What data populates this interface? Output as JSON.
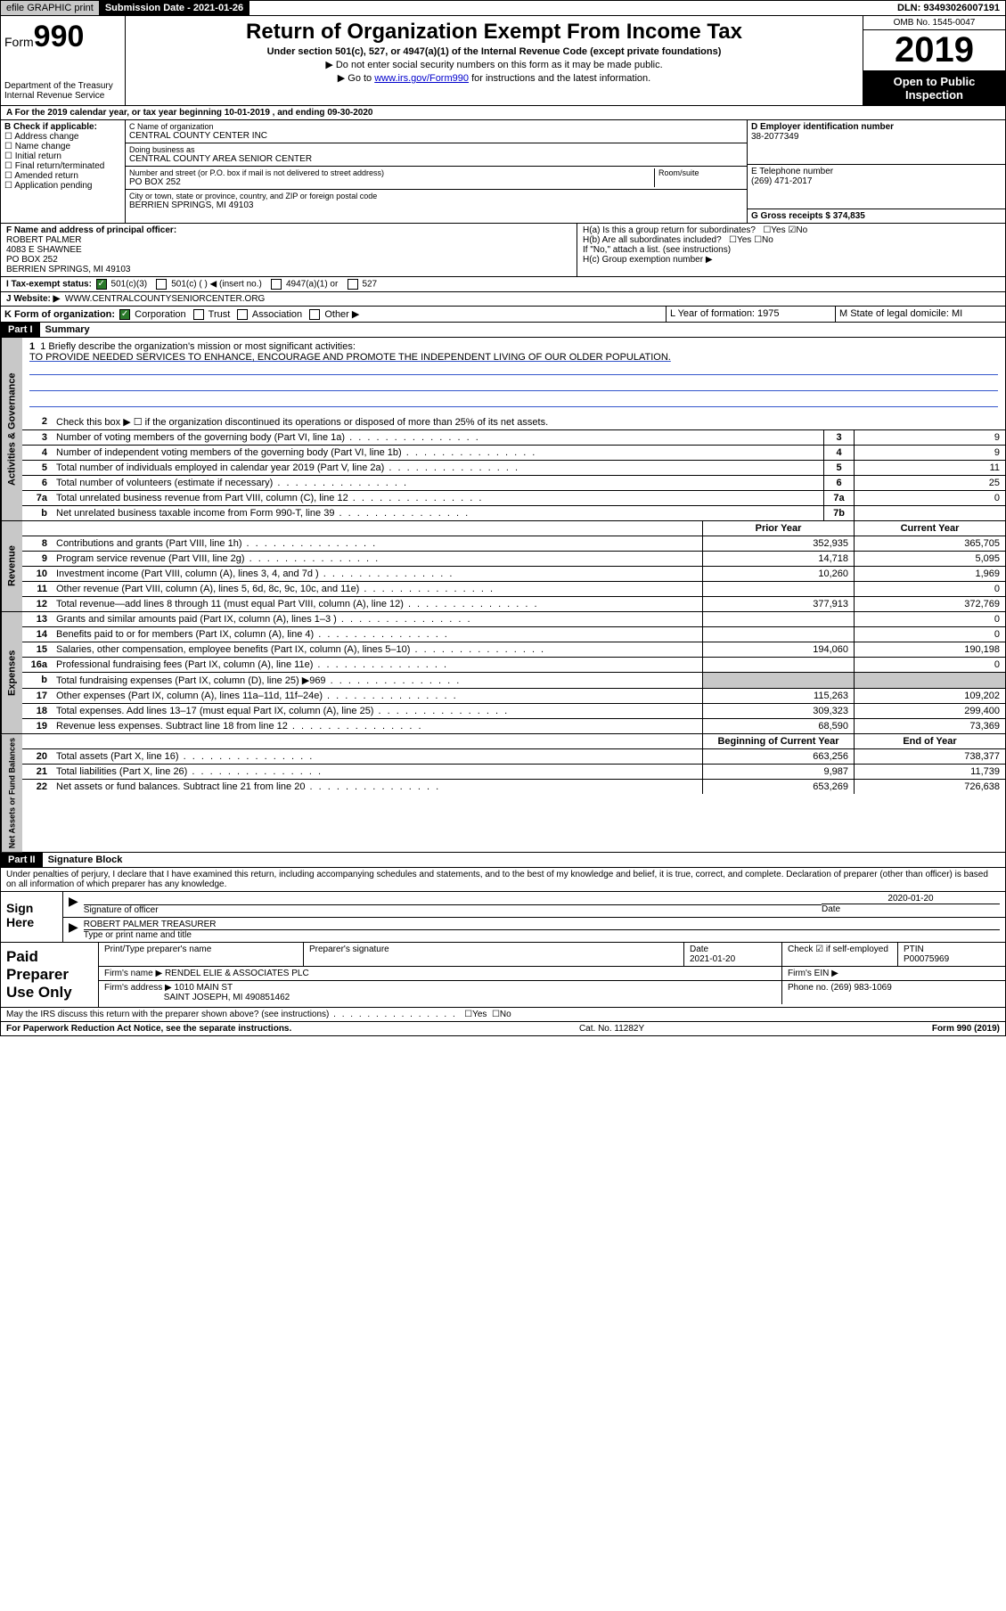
{
  "topbar": {
    "efile": "efile GRAPHIC print",
    "subdate_label": "Submission Date - 2021-01-26",
    "dln": "DLN: 93493026007191"
  },
  "header": {
    "form": "Form",
    "formnum": "990",
    "dept": "Department of the Treasury\nInternal Revenue Service",
    "title": "Return of Organization Exempt From Income Tax",
    "subtitle": "Under section 501(c), 527, or 4947(a)(1) of the Internal Revenue Code (except private foundations)",
    "dne": "▶ Do not enter social security numbers on this form as it may be made public.",
    "goto_pre": "▶ Go to ",
    "goto_link": "www.irs.gov/Form990",
    "goto_post": " for instructions and the latest information.",
    "omb": "OMB No. 1545-0047",
    "year": "2019",
    "open": "Open to Public Inspection"
  },
  "A": {
    "text": "A For the 2019 calendar year, or tax year beginning 10-01-2019   , and ending 09-30-2020"
  },
  "B": {
    "label": "B Check if applicable:",
    "opts": [
      "Address change",
      "Name change",
      "Initial return",
      "Final return/terminated",
      "Amended return",
      "Application pending"
    ]
  },
  "C": {
    "name_label": "C Name of organization",
    "name": "CENTRAL COUNTY CENTER INC",
    "dba_label": "Doing business as",
    "dba": "CENTRAL COUNTY AREA SENIOR CENTER",
    "addr_label": "Number and street (or P.O. box if mail is not delivered to street address)",
    "room_label": "Room/suite",
    "addr": "PO BOX 252",
    "city_label": "City or town, state or province, country, and ZIP or foreign postal code",
    "city": "BERRIEN SPRINGS, MI  49103"
  },
  "D": {
    "label": "D Employer identification number",
    "val": "38-2077349"
  },
  "E": {
    "label": "E Telephone number",
    "val": "(269) 471-2017"
  },
  "G": {
    "label": "G Gross receipts $ 374,835"
  },
  "F": {
    "label": "F Name and address of principal officer:",
    "name": "ROBERT PALMER",
    "l1": "4083 E SHAWNEE",
    "l2": "PO BOX 252",
    "l3": "BERRIEN SPRINGS, MI  49103"
  },
  "H": {
    "a": "H(a)  Is this a group return for subordinates?",
    "b": "H(b)  Are all subordinates included?",
    "b2": "If \"No,\" attach a list. (see instructions)",
    "c": "H(c)  Group exemption number ▶",
    "yes": "Yes",
    "no": "No"
  },
  "I": {
    "label": "I  Tax-exempt status:",
    "o1": "501(c)(3)",
    "o2": "501(c) (  ) ◀ (insert no.)",
    "o3": "4947(a)(1) or",
    "o4": "527"
  },
  "J": {
    "label": "J  Website: ▶",
    "val": "WWW.CENTRALCOUNTYSENIORCENTER.ORG"
  },
  "K": {
    "label": "K Form of organization:",
    "o1": "Corporation",
    "o2": "Trust",
    "o3": "Association",
    "o4": "Other ▶"
  },
  "L": {
    "label": "L Year of formation: 1975"
  },
  "M": {
    "label": "M State of legal domicile: MI"
  },
  "part1": {
    "bar": "Part I",
    "title": "Summary"
  },
  "summary": {
    "s1_label": "1  Briefly describe the organization's mission or most significant activities:",
    "mission": "TO PROVIDE NEEDED SERVICES TO ENHANCE, ENCOURAGE AND PROMOTE THE INDEPENDENT LIVING OF OUR OLDER POPULATION.",
    "s2": "Check this box ▶ ☐ if the organization discontinued its operations or disposed of more than 25% of its net assets.",
    "lines_gov": [
      {
        "n": "3",
        "t": "Number of voting members of the governing body (Part VI, line 1a)",
        "box": "3",
        "v": "9"
      },
      {
        "n": "4",
        "t": "Number of independent voting members of the governing body (Part VI, line 1b)",
        "box": "4",
        "v": "9"
      },
      {
        "n": "5",
        "t": "Total number of individuals employed in calendar year 2019 (Part V, line 2a)",
        "box": "5",
        "v": "11"
      },
      {
        "n": "6",
        "t": "Total number of volunteers (estimate if necessary)",
        "box": "6",
        "v": "25"
      },
      {
        "n": "7a",
        "t": "Total unrelated business revenue from Part VIII, column (C), line 12",
        "box": "7a",
        "v": "0"
      },
      {
        "n": "b",
        "t": "Net unrelated business taxable income from Form 990-T, line 39",
        "box": "7b",
        "v": ""
      }
    ],
    "col_py": "Prior Year",
    "col_cy": "Current Year",
    "lines_rev": [
      {
        "n": "8",
        "t": "Contributions and grants (Part VIII, line 1h)",
        "py": "352,935",
        "cy": "365,705"
      },
      {
        "n": "9",
        "t": "Program service revenue (Part VIII, line 2g)",
        "py": "14,718",
        "cy": "5,095"
      },
      {
        "n": "10",
        "t": "Investment income (Part VIII, column (A), lines 3, 4, and 7d )",
        "py": "10,260",
        "cy": "1,969"
      },
      {
        "n": "11",
        "t": "Other revenue (Part VIII, column (A), lines 5, 6d, 8c, 9c, 10c, and 11e)",
        "py": "",
        "cy": "0"
      },
      {
        "n": "12",
        "t": "Total revenue—add lines 8 through 11 (must equal Part VIII, column (A), line 12)",
        "py": "377,913",
        "cy": "372,769"
      }
    ],
    "lines_exp": [
      {
        "n": "13",
        "t": "Grants and similar amounts paid (Part IX, column (A), lines 1–3 )",
        "py": "",
        "cy": "0"
      },
      {
        "n": "14",
        "t": "Benefits paid to or for members (Part IX, column (A), line 4)",
        "py": "",
        "cy": "0"
      },
      {
        "n": "15",
        "t": "Salaries, other compensation, employee benefits (Part IX, column (A), lines 5–10)",
        "py": "194,060",
        "cy": "190,198"
      },
      {
        "n": "16a",
        "t": "Professional fundraising fees (Part IX, column (A), line 11e)",
        "py": "",
        "cy": "0"
      },
      {
        "n": "b",
        "t": "Total fundraising expenses (Part IX, column (D), line 25) ▶969",
        "py": "GREY",
        "cy": "GREY"
      },
      {
        "n": "17",
        "t": "Other expenses (Part IX, column (A), lines 11a–11d, 11f–24e)",
        "py": "115,263",
        "cy": "109,202"
      },
      {
        "n": "18",
        "t": "Total expenses. Add lines 13–17 (must equal Part IX, column (A), line 25)",
        "py": "309,323",
        "cy": "299,400"
      },
      {
        "n": "19",
        "t": "Revenue less expenses. Subtract line 18 from line 12",
        "py": "68,590",
        "cy": "73,369"
      }
    ],
    "col_boy": "Beginning of Current Year",
    "col_eoy": "End of Year",
    "lines_net": [
      {
        "n": "20",
        "t": "Total assets (Part X, line 16)",
        "py": "663,256",
        "cy": "738,377"
      },
      {
        "n": "21",
        "t": "Total liabilities (Part X, line 26)",
        "py": "9,987",
        "cy": "11,739"
      },
      {
        "n": "22",
        "t": "Net assets or fund balances. Subtract line 21 from line 20",
        "py": "653,269",
        "cy": "726,638"
      }
    ],
    "side_gov": "Activities & Governance",
    "side_rev": "Revenue",
    "side_exp": "Expenses",
    "side_net": "Net Assets or Fund Balances"
  },
  "part2": {
    "bar": "Part II",
    "title": "Signature Block"
  },
  "sig": {
    "decl": "Under penalties of perjury, I declare that I have examined this return, including accompanying schedules and statements, and to the best of my knowledge and belief, it is true, correct, and complete. Declaration of preparer (other than officer) is based on all information of which preparer has any knowledge.",
    "sign_here": "Sign Here",
    "sig_officer": "Signature of officer",
    "date_label": "Date",
    "date": "2020-01-20",
    "name": "ROBERT PALMER  TREASURER",
    "name_label": "Type or print name and title"
  },
  "paid": {
    "label": "Paid Preparer Use Only",
    "h1": "Print/Type preparer's name",
    "h2": "Preparer's signature",
    "h3": "Date",
    "date": "2021-01-20",
    "h4": "Check ☑ if self-employed",
    "h5": "PTIN",
    "ptin": "P00075969",
    "firm_label": "Firm's name    ▶",
    "firm": "RENDEL ELIE & ASSOCIATES PLC",
    "ein_label": "Firm's EIN ▶",
    "addr_label": "Firm's address ▶",
    "addr1": "1010 MAIN ST",
    "addr2": "SAINT JOSEPH, MI  490851462",
    "phone_label": "Phone no. (269) 983-1069"
  },
  "discuss": {
    "text": "May the IRS discuss this return with the preparer shown above? (see instructions)",
    "yes": "Yes",
    "no": "No"
  },
  "footer": {
    "l": "For Paperwork Reduction Act Notice, see the separate instructions.",
    "m": "Cat. No. 11282Y",
    "r": "Form 990 (2019)"
  }
}
